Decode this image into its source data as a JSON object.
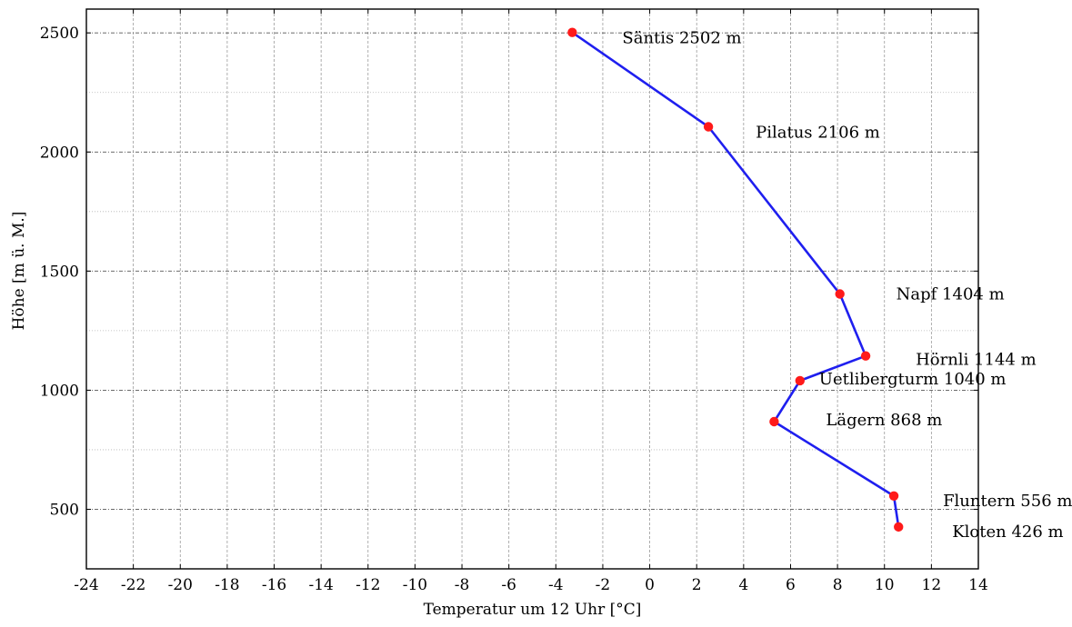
{
  "chart_data": {
    "type": "line",
    "title": "",
    "xlabel": "Temperatur um 12 Uhr [°C]",
    "ylabel": "Höhe [m ü. M.]",
    "xlim": [
      -24,
      14
    ],
    "ylim": [
      250,
      2600
    ],
    "x_ticks": [
      -24,
      -22,
      -20,
      -18,
      -16,
      -14,
      -12,
      -10,
      -8,
      -6,
      -4,
      -2,
      0,
      2,
      4,
      6,
      8,
      10,
      12,
      14
    ],
    "y_ticks": [
      500,
      1000,
      1500,
      2000,
      2500
    ],
    "grid": true,
    "legend": "none",
    "colors": {
      "line": "#1f1fef",
      "marker": "#ff1a1a",
      "axis": "#000000",
      "grid": "#9a9a9a"
    },
    "series": [
      {
        "points": [
          {
            "x": -3.3,
            "y": 2502,
            "label": "Säntis 2502 m"
          },
          {
            "x": 2.5,
            "y": 2106,
            "label": "Pilatus 2106 m"
          },
          {
            "x": 8.1,
            "y": 1404,
            "label": "Napf 1404 m"
          },
          {
            "x": 9.2,
            "y": 1144,
            "label": "Hörnli 1144 m"
          },
          {
            "x": 6.4,
            "y": 1040,
            "label": "Uetlibergturm 1040 m"
          },
          {
            "x": 5.3,
            "y": 868,
            "label": "Lägern 868 m"
          },
          {
            "x": 10.4,
            "y": 556,
            "label": "Fluntern 556 m"
          },
          {
            "x": 10.6,
            "y": 426,
            "label": "Kloten 426 m"
          }
        ]
      }
    ]
  }
}
